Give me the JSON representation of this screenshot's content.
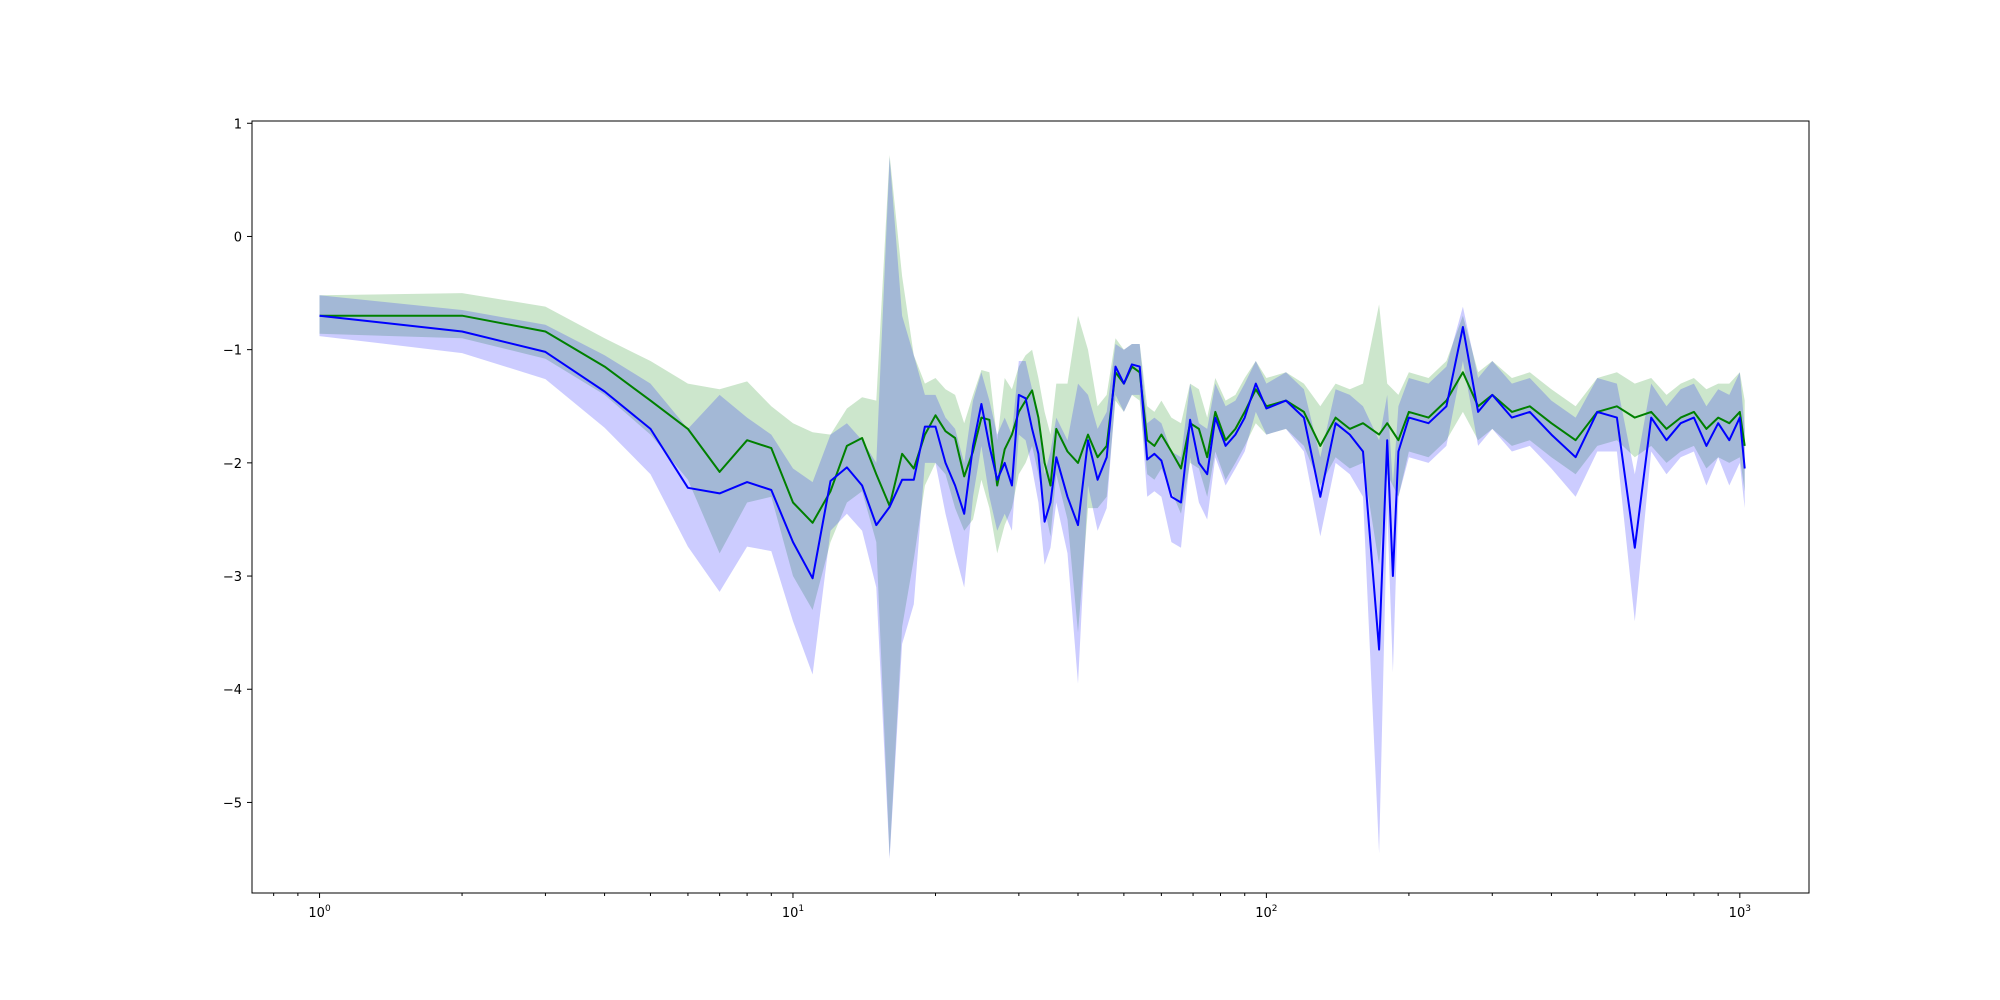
{
  "chart_data": {
    "type": "line",
    "title": "",
    "xlabel": "",
    "ylabel": "",
    "xscale": "log",
    "xlim": [
      0.72,
      1400
    ],
    "ylim": [
      -5.8,
      1.02
    ],
    "grid": false,
    "legend": "none",
    "x_ticks": [
      {
        "value": 1,
        "base": "10",
        "exp": "0"
      },
      {
        "value": 10,
        "base": "10",
        "exp": "1"
      },
      {
        "value": 100,
        "base": "10",
        "exp": "2"
      },
      {
        "value": 1000,
        "base": "10",
        "exp": "3"
      }
    ],
    "y_ticks": [
      1,
      0,
      -1,
      -2,
      -3,
      -4,
      -5
    ],
    "y_tick_labels": [
      "1",
      "0",
      "−1",
      "−2",
      "−3",
      "−4",
      "−5"
    ],
    "series": [
      {
        "color": "#008000",
        "band_color": "#008000",
        "band_opacity": 0.2,
        "points": [
          [
            1,
            -0.7,
            -0.52,
            -0.86
          ],
          [
            2,
            -0.7,
            -0.5,
            -0.9
          ],
          [
            3,
            -0.84,
            -0.62,
            -1.08
          ],
          [
            4,
            -1.15,
            -0.9,
            -1.4
          ],
          [
            5,
            -1.45,
            -1.1,
            -1.75
          ],
          [
            6,
            -1.7,
            -1.3,
            -2.15
          ],
          [
            7,
            -2.08,
            -1.35,
            -2.8
          ],
          [
            8,
            -1.8,
            -1.28,
            -2.35
          ],
          [
            9,
            -1.87,
            -1.5,
            -2.3
          ],
          [
            10,
            -2.35,
            -1.65,
            -3.0
          ],
          [
            11,
            -2.53,
            -1.73,
            -3.3
          ],
          [
            12,
            -2.25,
            -1.75,
            -2.7
          ],
          [
            13,
            -1.85,
            -1.52,
            -2.35
          ],
          [
            14,
            -1.78,
            -1.42,
            -2.25
          ],
          [
            15,
            -2.1,
            -1.45,
            -2.7
          ],
          [
            16,
            -2.38,
            0.72,
            -5.48
          ],
          [
            17,
            -1.92,
            -0.35,
            -3.45
          ],
          [
            18,
            -2.05,
            -1.05,
            -2.85
          ],
          [
            19,
            -1.75,
            -1.3,
            -2.2
          ],
          [
            20,
            -1.58,
            -1.25,
            -2.0
          ],
          [
            21,
            -1.72,
            -1.35,
            -2.1
          ],
          [
            22,
            -1.78,
            -1.4,
            -2.4
          ],
          [
            23,
            -2.12,
            -1.65,
            -2.6
          ],
          [
            24,
            -1.9,
            -1.4,
            -2.5
          ],
          [
            25,
            -1.6,
            -1.18,
            -2.15
          ],
          [
            26,
            -1.62,
            -1.2,
            -2.4
          ],
          [
            27,
            -2.2,
            -1.8,
            -2.8
          ],
          [
            28,
            -1.88,
            -1.25,
            -2.55
          ],
          [
            29,
            -1.75,
            -1.35,
            -2.4
          ],
          [
            30,
            -1.55,
            -1.15,
            -2.1
          ],
          [
            31,
            -1.45,
            -1.05,
            -2.0
          ],
          [
            32,
            -1.36,
            -1.0,
            -1.85
          ],
          [
            33,
            -1.6,
            -1.25,
            -2.1
          ],
          [
            34,
            -2.0,
            -1.55,
            -2.4
          ],
          [
            35,
            -2.2,
            -1.75,
            -2.65
          ],
          [
            36,
            -1.7,
            -1.3,
            -2.1
          ],
          [
            38,
            -1.9,
            -1.3,
            -2.5
          ],
          [
            40,
            -2.0,
            -0.7,
            -3.5
          ],
          [
            42,
            -1.75,
            -1.0,
            -2.4
          ],
          [
            44,
            -1.95,
            -1.5,
            -2.4
          ],
          [
            46,
            -1.85,
            -1.4,
            -2.3
          ],
          [
            48,
            -1.2,
            -0.9,
            -1.45
          ],
          [
            50,
            -1.3,
            -1.0,
            -1.55
          ],
          [
            52,
            -1.15,
            -0.95,
            -1.4
          ],
          [
            54,
            -1.2,
            -0.95,
            -1.45
          ],
          [
            56,
            -1.8,
            -1.5,
            -2.1
          ],
          [
            58,
            -1.85,
            -1.55,
            -2.15
          ],
          [
            60,
            -1.75,
            -1.45,
            -2.05
          ],
          [
            63,
            -1.9,
            -1.6,
            -2.25
          ],
          [
            66,
            -2.05,
            -1.65,
            -2.45
          ],
          [
            69,
            -1.65,
            -1.3,
            -2.0
          ],
          [
            72,
            -1.7,
            -1.35,
            -2.05
          ],
          [
            75,
            -1.95,
            -1.6,
            -2.3
          ],
          [
            78,
            -1.55,
            -1.25,
            -1.9
          ],
          [
            82,
            -1.8,
            -1.45,
            -2.15
          ],
          [
            86,
            -1.7,
            -1.4,
            -2.0
          ],
          [
            90,
            -1.55,
            -1.25,
            -1.85
          ],
          [
            95,
            -1.35,
            -1.1,
            -1.65
          ],
          [
            100,
            -1.5,
            -1.25,
            -1.75
          ],
          [
            110,
            -1.45,
            -1.2,
            -1.7
          ],
          [
            120,
            -1.55,
            -1.3,
            -1.85
          ],
          [
            130,
            -1.85,
            -1.5,
            -2.2
          ],
          [
            140,
            -1.6,
            -1.3,
            -1.95
          ],
          [
            150,
            -1.7,
            -1.35,
            -2.05
          ],
          [
            160,
            -1.65,
            -1.3,
            -2.0
          ],
          [
            173,
            -1.75,
            -0.6,
            -2.9
          ],
          [
            180,
            -1.65,
            -1.3,
            -2.1
          ],
          [
            190,
            -1.8,
            -1.4,
            -2.3
          ],
          [
            200,
            -1.55,
            -1.2,
            -1.9
          ],
          [
            220,
            -1.6,
            -1.25,
            -1.95
          ],
          [
            240,
            -1.45,
            -1.1,
            -1.8
          ],
          [
            260,
            -1.2,
            -0.7,
            -1.55
          ],
          [
            280,
            -1.5,
            -1.2,
            -1.8
          ],
          [
            300,
            -1.4,
            -1.1,
            -1.7
          ],
          [
            330,
            -1.55,
            -1.25,
            -1.85
          ],
          [
            360,
            -1.5,
            -1.2,
            -1.8
          ],
          [
            400,
            -1.65,
            -1.35,
            -1.95
          ],
          [
            450,
            -1.8,
            -1.5,
            -2.1
          ],
          [
            500,
            -1.55,
            -1.25,
            -1.85
          ],
          [
            550,
            -1.5,
            -1.2,
            -1.8
          ],
          [
            600,
            -1.6,
            -1.3,
            -1.95
          ],
          [
            650,
            -1.55,
            -1.25,
            -1.85
          ],
          [
            700,
            -1.7,
            -1.4,
            -2.0
          ],
          [
            750,
            -1.6,
            -1.3,
            -1.9
          ],
          [
            800,
            -1.55,
            -1.25,
            -1.85
          ],
          [
            850,
            -1.7,
            -1.35,
            -2.05
          ],
          [
            900,
            -1.6,
            -1.3,
            -1.95
          ],
          [
            950,
            -1.65,
            -1.3,
            -2.0
          ],
          [
            1000,
            -1.55,
            -1.2,
            -1.95
          ],
          [
            1024,
            -1.85,
            -1.45,
            -2.25
          ]
        ]
      },
      {
        "color": "#0000ff",
        "band_color": "#0000ff",
        "band_opacity": 0.2,
        "points": [
          [
            1,
            -0.7,
            -0.52,
            -0.88
          ],
          [
            2,
            -0.84,
            -0.65,
            -1.03
          ],
          [
            3,
            -1.02,
            -0.78,
            -1.26
          ],
          [
            4,
            -1.37,
            -1.05,
            -1.69
          ],
          [
            5,
            -1.7,
            -1.3,
            -2.1
          ],
          [
            6,
            -2.22,
            -1.7,
            -2.74
          ],
          [
            7,
            -2.27,
            -1.4,
            -3.14
          ],
          [
            8,
            -2.17,
            -1.6,
            -2.74
          ],
          [
            9,
            -2.24,
            -1.75,
            -2.78
          ],
          [
            10,
            -2.7,
            -2.05,
            -3.4
          ],
          [
            11,
            -3.02,
            -2.17,
            -3.87
          ],
          [
            12,
            -2.16,
            -1.75,
            -2.6
          ],
          [
            13,
            -2.04,
            -1.65,
            -2.45
          ],
          [
            14,
            -2.2,
            -1.8,
            -2.6
          ],
          [
            15,
            -2.55,
            -2.0,
            -3.1
          ],
          [
            16,
            -2.39,
            0.7,
            -5.5
          ],
          [
            17,
            -2.15,
            -0.7,
            -3.6
          ],
          [
            18,
            -2.15,
            -1.05,
            -3.25
          ],
          [
            19,
            -1.68,
            -1.4,
            -2.0
          ],
          [
            20,
            -1.68,
            -1.4,
            -2.0
          ],
          [
            21,
            -2.0,
            -1.6,
            -2.45
          ],
          [
            22,
            -2.2,
            -1.7,
            -2.8
          ],
          [
            23,
            -2.45,
            -2.0,
            -3.1
          ],
          [
            24,
            -1.85,
            -1.45,
            -2.3
          ],
          [
            25,
            -1.48,
            -1.2,
            -1.85
          ],
          [
            26,
            -1.85,
            -1.45,
            -2.3
          ],
          [
            27,
            -2.15,
            -1.75,
            -2.6
          ],
          [
            28,
            -2.0,
            -1.6,
            -2.45
          ],
          [
            29,
            -2.2,
            -1.75,
            -2.6
          ],
          [
            30,
            -1.4,
            -1.1,
            -1.75
          ],
          [
            31,
            -1.43,
            -1.1,
            -1.8
          ],
          [
            32,
            -1.7,
            -1.35,
            -2.05
          ],
          [
            33,
            -1.92,
            -1.55,
            -2.35
          ],
          [
            34,
            -2.52,
            -2.1,
            -2.9
          ],
          [
            35,
            -2.35,
            -1.9,
            -2.75
          ],
          [
            36,
            -1.95,
            -1.6,
            -2.35
          ],
          [
            38,
            -2.3,
            -1.8,
            -2.8
          ],
          [
            40,
            -2.55,
            -1.3,
            -3.95
          ],
          [
            42,
            -1.8,
            -1.4,
            -2.2
          ],
          [
            44,
            -2.15,
            -1.7,
            -2.6
          ],
          [
            46,
            -1.95,
            -1.55,
            -2.4
          ],
          [
            48,
            -1.15,
            -0.95,
            -1.4
          ],
          [
            50,
            -1.3,
            -1.0,
            -1.55
          ],
          [
            52,
            -1.13,
            -0.95,
            -1.4
          ],
          [
            54,
            -1.15,
            -0.95,
            -1.4
          ],
          [
            56,
            -1.97,
            -1.65,
            -2.3
          ],
          [
            58,
            -1.92,
            -1.6,
            -2.25
          ],
          [
            60,
            -1.98,
            -1.65,
            -2.3
          ],
          [
            63,
            -2.3,
            -1.9,
            -2.7
          ],
          [
            66,
            -2.35,
            -1.95,
            -2.75
          ],
          [
            69,
            -1.62,
            -1.3,
            -1.95
          ],
          [
            72,
            -2.0,
            -1.65,
            -2.35
          ],
          [
            75,
            -2.1,
            -1.7,
            -2.5
          ],
          [
            78,
            -1.6,
            -1.3,
            -1.95
          ],
          [
            82,
            -1.85,
            -1.5,
            -2.2
          ],
          [
            86,
            -1.75,
            -1.45,
            -2.05
          ],
          [
            90,
            -1.6,
            -1.3,
            -1.9
          ],
          [
            95,
            -1.3,
            -1.1,
            -1.55
          ],
          [
            100,
            -1.52,
            -1.3,
            -1.75
          ],
          [
            110,
            -1.45,
            -1.2,
            -1.7
          ],
          [
            120,
            -1.6,
            -1.35,
            -1.9
          ],
          [
            130,
            -2.3,
            -1.95,
            -2.65
          ],
          [
            140,
            -1.65,
            -1.35,
            -2.0
          ],
          [
            150,
            -1.75,
            -1.4,
            -2.1
          ],
          [
            160,
            -1.9,
            -1.5,
            -2.3
          ],
          [
            173,
            -3.65,
            -1.8,
            -5.45
          ],
          [
            180,
            -1.8,
            -1.4,
            -2.4
          ],
          [
            185,
            -3.0,
            -2.2,
            -3.85
          ],
          [
            190,
            -1.9,
            -1.5,
            -2.3
          ],
          [
            200,
            -1.6,
            -1.25,
            -1.95
          ],
          [
            220,
            -1.65,
            -1.3,
            -2.0
          ],
          [
            240,
            -1.5,
            -1.15,
            -1.85
          ],
          [
            260,
            -0.8,
            -0.62,
            -1.1
          ],
          [
            280,
            -1.55,
            -1.25,
            -1.85
          ],
          [
            300,
            -1.4,
            -1.1,
            -1.7
          ],
          [
            330,
            -1.6,
            -1.3,
            -1.9
          ],
          [
            360,
            -1.55,
            -1.25,
            -1.85
          ],
          [
            400,
            -1.75,
            -1.45,
            -2.05
          ],
          [
            450,
            -1.95,
            -1.6,
            -2.3
          ],
          [
            500,
            -1.55,
            -1.25,
            -1.9
          ],
          [
            550,
            -1.6,
            -1.3,
            -1.9
          ],
          [
            600,
            -2.75,
            -2.1,
            -3.4
          ],
          [
            650,
            -1.6,
            -1.3,
            -1.9
          ],
          [
            700,
            -1.8,
            -1.5,
            -2.1
          ],
          [
            750,
            -1.65,
            -1.35,
            -1.95
          ],
          [
            800,
            -1.6,
            -1.3,
            -1.9
          ],
          [
            850,
            -1.85,
            -1.5,
            -2.2
          ],
          [
            900,
            -1.65,
            -1.35,
            -1.95
          ],
          [
            950,
            -1.8,
            -1.4,
            -2.2
          ],
          [
            1000,
            -1.6,
            -1.2,
            -2.0
          ],
          [
            1024,
            -2.05,
            -1.7,
            -2.4
          ]
        ]
      }
    ]
  }
}
